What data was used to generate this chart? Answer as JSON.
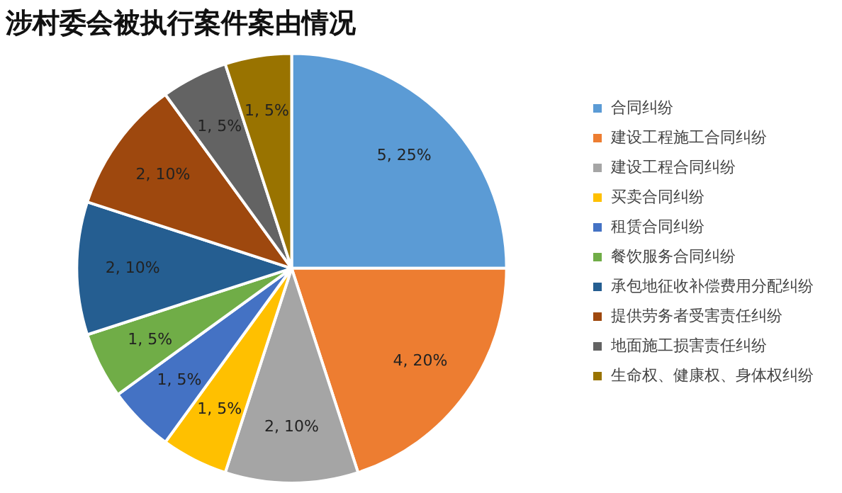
{
  "chart_data": {
    "type": "pie",
    "title": "涉村委会被执行案件案由情况",
    "categories": [
      "合同纠纷",
      "建设工程施工合同纠纷",
      "建设工程合同纠纷",
      "买卖合同纠纷",
      "租赁合同纠纷",
      "餐饮服务合同纠纷",
      "承包地征收补偿费用分配纠纷",
      "提供劳务者受害责任纠纷",
      "地面施工损害责任纠纷",
      "生命权、健康权、身体权纠纷"
    ],
    "values": [
      5,
      4,
      2,
      1,
      1,
      1,
      2,
      2,
      1,
      1
    ],
    "value_labels": [
      "5, 25%",
      "4, 20%",
      "2, 10%",
      "1, 5%",
      "1, 5%",
      "1, 5%",
      "2, 10%",
      "2, 10%",
      "1, 5%",
      "1, 5%"
    ],
    "colors": [
      "#5b9bd5",
      "#ed7d31",
      "#a5a5a5",
      "#ffc000",
      "#4472c4",
      "#70ad47",
      "#255e91",
      "#9e480e",
      "#636363",
      "#997300"
    ],
    "legend": "right"
  }
}
